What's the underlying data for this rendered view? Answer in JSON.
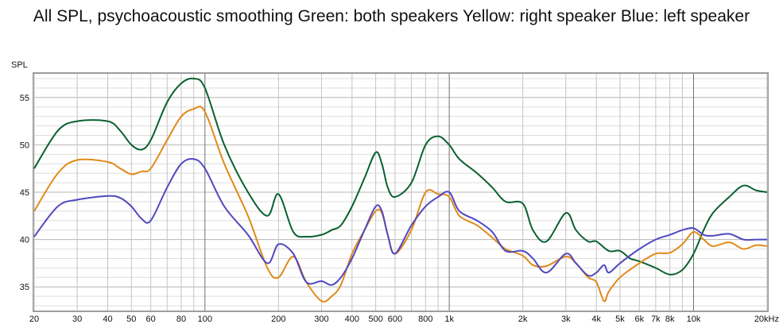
{
  "chart_data": {
    "type": "line",
    "title": "All SPL, psychoacoustic smoothing Green: both speakers Yellow: right speaker Blue: left speaker",
    "ylabel": "SPL",
    "xlabel": "",
    "xscale": "log",
    "xlim": [
      20,
      20000
    ],
    "ylim": [
      32.5,
      57.5
    ],
    "grid": true,
    "x_ticks": [
      {
        "value": 20,
        "label": "20"
      },
      {
        "value": 30,
        "label": "30"
      },
      {
        "value": 40,
        "label": "40"
      },
      {
        "value": 50,
        "label": "50"
      },
      {
        "value": 60,
        "label": "60"
      },
      {
        "value": 80,
        "label": "80"
      },
      {
        "value": 100,
        "label": "100"
      },
      {
        "value": 200,
        "label": "200"
      },
      {
        "value": 300,
        "label": "300"
      },
      {
        "value": 400,
        "label": "400"
      },
      {
        "value": 500,
        "label": "500"
      },
      {
        "value": 600,
        "label": "600"
      },
      {
        "value": 800,
        "label": "800"
      },
      {
        "value": 1000,
        "label": "1k"
      },
      {
        "value": 2000,
        "label": "2k"
      },
      {
        "value": 3000,
        "label": "3k"
      },
      {
        "value": 4000,
        "label": "4k"
      },
      {
        "value": 5000,
        "label": "5k"
      },
      {
        "value": 6000,
        "label": "6k"
      },
      {
        "value": 7000,
        "label": "7k"
      },
      {
        "value": 8000,
        "label": "8k"
      },
      {
        "value": 10000,
        "label": "10k"
      },
      {
        "value": 20000,
        "label": "20kHz"
      }
    ],
    "y_ticks": [
      35,
      40,
      45,
      50,
      55
    ],
    "series": [
      {
        "color": "#0a6030",
        "x": [
          20,
          25,
          30,
          40,
          45,
          50,
          55,
          60,
          70,
          80,
          90,
          100,
          120,
          150,
          180,
          200,
          230,
          260,
          300,
          330,
          360,
          400,
          450,
          500,
          530,
          560,
          600,
          700,
          800,
          900,
          1000,
          1100,
          1300,
          1500,
          1700,
          2000,
          2200,
          2500,
          3000,
          3300,
          3700,
          4000,
          4500,
          5000,
          5500,
          6000,
          7000,
          8000,
          9000,
          10000,
          11000,
          12000,
          14000,
          16000,
          18000,
          20000
        ],
        "values": [
          47.5,
          51.5,
          52.5,
          52.5,
          51.5,
          50.0,
          49.5,
          50.5,
          54.5,
          56.5,
          57.0,
          56.0,
          50.0,
          45.0,
          42.5,
          44.8,
          40.8,
          40.3,
          40.5,
          41.0,
          41.5,
          43.5,
          46.5,
          49.2,
          48.0,
          45.5,
          44.5,
          46.0,
          50.0,
          50.9,
          50.0,
          48.5,
          47.0,
          45.5,
          44.0,
          43.8,
          41.0,
          39.8,
          42.8,
          41.0,
          39.8,
          39.8,
          38.8,
          38.8,
          38.0,
          37.7,
          37.0,
          36.3,
          36.8,
          38.5,
          41.0,
          42.8,
          44.5,
          45.7,
          45.2,
          45.0
        ]
      },
      {
        "color": "#e08a18",
        "x": [
          20,
          25,
          30,
          40,
          45,
          50,
          55,
          60,
          70,
          80,
          90,
          100,
          120,
          150,
          180,
          200,
          230,
          260,
          300,
          330,
          360,
          400,
          450,
          500,
          530,
          560,
          600,
          700,
          800,
          900,
          1000,
          1100,
          1300,
          1500,
          1700,
          2000,
          2200,
          2500,
          3000,
          3300,
          3700,
          4000,
          4300,
          4500,
          5000,
          6000,
          7000,
          8000,
          9000,
          10000,
          11000,
          12000,
          14000,
          16000,
          18000,
          20000
        ],
        "values": [
          43.0,
          47.0,
          48.4,
          48.2,
          47.5,
          46.9,
          47.2,
          47.5,
          50.5,
          53.0,
          53.8,
          53.5,
          48.0,
          42.5,
          37.0,
          36.0,
          38.2,
          35.5,
          33.5,
          34.0,
          35.2,
          38.5,
          41.0,
          43.0,
          42.8,
          40.5,
          38.5,
          41.0,
          45.0,
          44.8,
          44.5,
          42.5,
          41.5,
          40.2,
          39.0,
          38.3,
          37.3,
          37.2,
          38.2,
          37.5,
          36.0,
          35.5,
          33.5,
          34.5,
          36.0,
          37.5,
          38.5,
          38.6,
          39.5,
          40.8,
          40.0,
          39.3,
          39.7,
          39.0,
          39.4,
          39.3
        ]
      },
      {
        "color": "#5048c0",
        "x": [
          20,
          25,
          30,
          40,
          45,
          50,
          55,
          60,
          70,
          80,
          90,
          100,
          120,
          150,
          180,
          200,
          230,
          260,
          300,
          330,
          360,
          400,
          450,
          500,
          530,
          560,
          600,
          700,
          800,
          900,
          1000,
          1100,
          1300,
          1500,
          1700,
          2000,
          2200,
          2500,
          3000,
          3300,
          3700,
          4000,
          4300,
          4500,
          5000,
          6000,
          7000,
          8000,
          9000,
          10000,
          11000,
          12000,
          14000,
          16000,
          18000,
          20000
        ],
        "values": [
          40.3,
          43.5,
          44.2,
          44.6,
          44.4,
          43.5,
          42.2,
          42.0,
          45.5,
          48.0,
          48.5,
          47.5,
          43.5,
          40.5,
          37.5,
          39.5,
          38.5,
          35.5,
          35.6,
          35.2,
          36.0,
          38.0,
          41.0,
          43.5,
          43.0,
          40.5,
          38.5,
          41.5,
          43.5,
          44.5,
          45.0,
          43.0,
          42.0,
          40.8,
          38.8,
          38.8,
          38.0,
          36.5,
          38.5,
          37.5,
          36.2,
          36.5,
          37.3,
          36.5,
          37.5,
          39.0,
          40.0,
          40.5,
          41.0,
          41.2,
          40.5,
          40.4,
          40.6,
          40.0,
          40.0,
          40.0
        ]
      }
    ]
  }
}
